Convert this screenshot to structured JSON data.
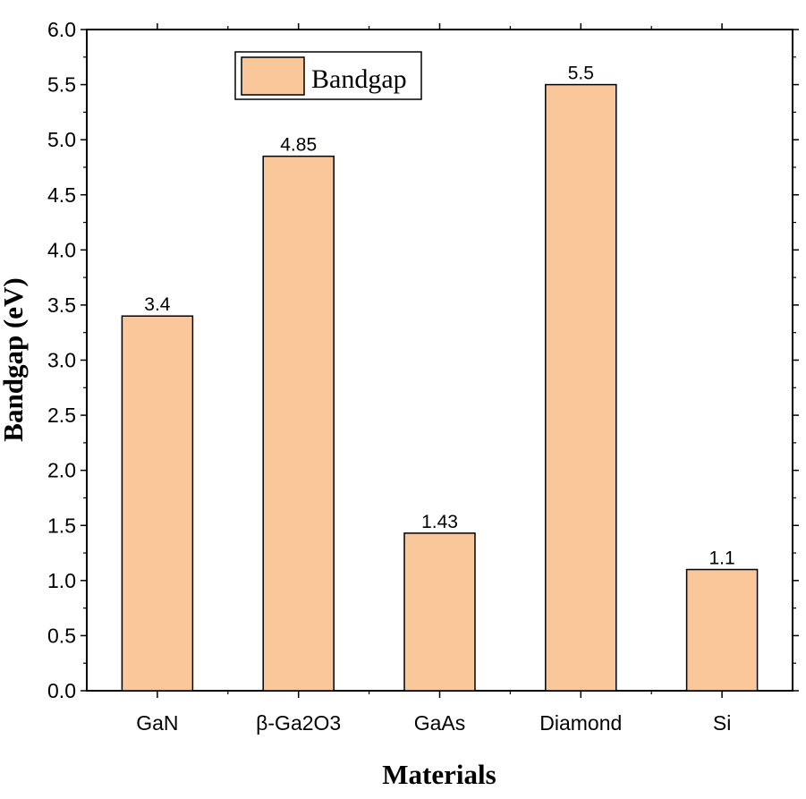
{
  "chart_data": {
    "type": "bar",
    "categories": [
      "GaN",
      "β-Ga2O3",
      "GaAs",
      "Diamond",
      "Si"
    ],
    "series": [
      {
        "name": "Bandgap",
        "values": [
          3.4,
          4.85,
          1.43,
          5.5,
          1.1
        ]
      }
    ],
    "value_labels": [
      "3.4",
      "4.85",
      "1.43",
      "5.5",
      "1.1"
    ],
    "xlabel": "Materials",
    "ylabel": "Bandgap (eV)",
    "ylim": [
      0,
      6
    ],
    "y_ticks": [
      "0.0",
      "0.5",
      "1.0",
      "1.5",
      "2.0",
      "2.5",
      "3.0",
      "3.5",
      "4.0",
      "4.5",
      "5.0",
      "5.5",
      "6.0"
    ],
    "legend": {
      "position": "top-left",
      "labels": [
        "Bandgap"
      ]
    },
    "grid": false,
    "colors": {
      "bar_fill": "#F9C79A",
      "bar_stroke": "#000000",
      "axis": "#000000"
    }
  }
}
